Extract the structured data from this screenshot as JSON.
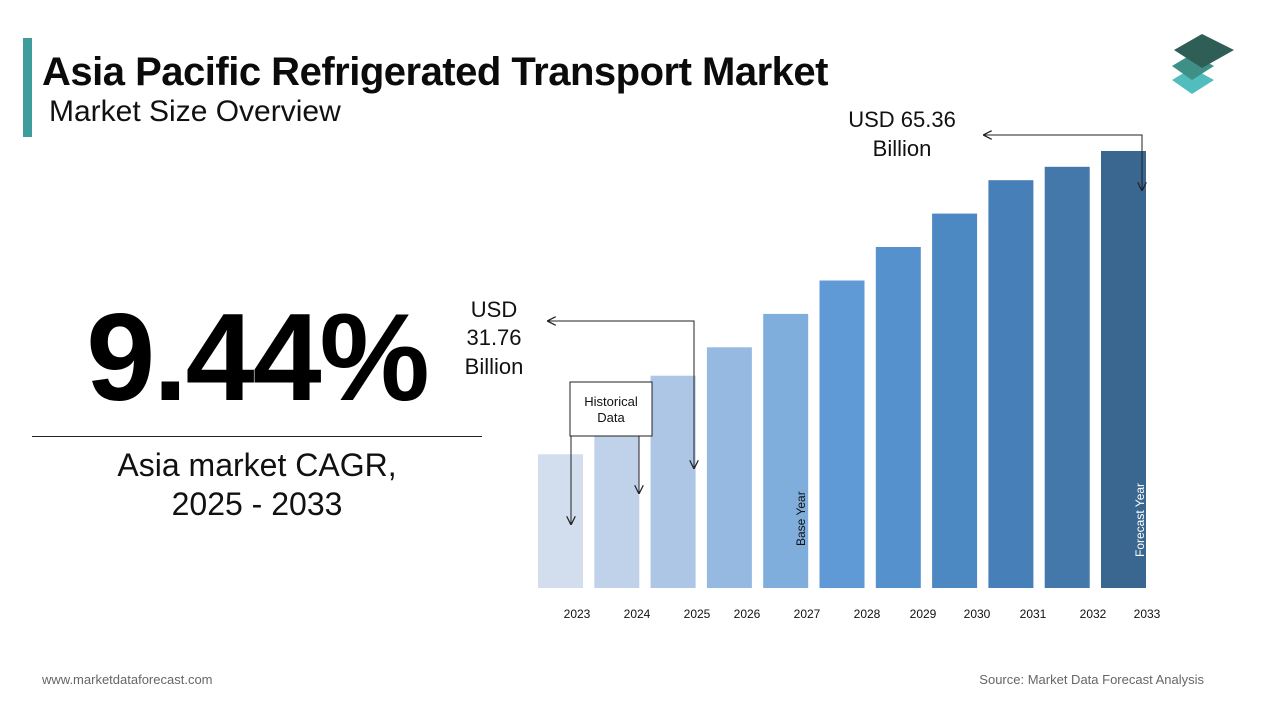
{
  "header": {
    "title": "Asia Pacific Refrigerated Transport Market",
    "subtitle": "Market Size Overview"
  },
  "highlight": {
    "cagr_value": "9.44%",
    "cagr_label_line1": "Asia market CAGR,",
    "cagr_label_line2": "2025 - 2033"
  },
  "footer": {
    "website": "www.marketdataforecast.com",
    "source": "Source: Market Data Forecast Analysis"
  },
  "colors": {
    "accent": "#3e9c9c",
    "logo_top": "#2e5e55",
    "logo_mid": "#3e8f85",
    "logo_bottom": "#52bdbd"
  },
  "chart_data": {
    "type": "bar",
    "categories": [
      "2023",
      "2024",
      "2025",
      "2026",
      "2027",
      "2028",
      "2029",
      "2030",
      "2031",
      "2032",
      "2033"
    ],
    "values": [
      20.0,
      25.0,
      31.76,
      36.0,
      41.0,
      46.0,
      51.0,
      56.0,
      61.0,
      63.0,
      65.36
    ],
    "bar_colors": [
      "#d2ddee",
      "#c0d2ea",
      "#adc6e6",
      "#96b9e1",
      "#7faedd",
      "#5f9ad7",
      "#5592cd",
      "#4c88c2",
      "#4780b8",
      "#4477aa",
      "#3a6790"
    ],
    "ylim": [
      0,
      70
    ],
    "annotations": {
      "start_value_line1": "USD",
      "start_value_line2": "31.76",
      "start_value_line3": "Billion",
      "end_value_line1": "USD 65.36",
      "end_value_line2": "Billion",
      "historical_line1": "Historical",
      "historical_line2": "Data",
      "base_year": "Base Year",
      "forecast_year": "Forecast Year"
    }
  }
}
